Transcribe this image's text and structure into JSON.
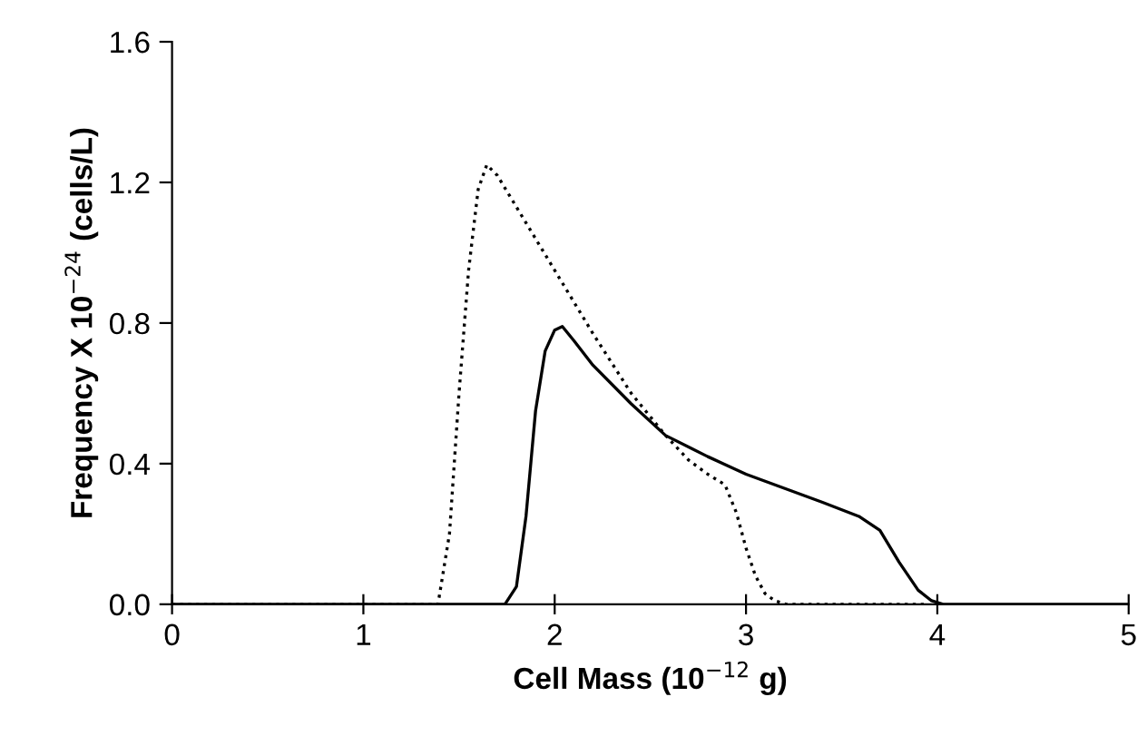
{
  "chart_data": {
    "type": "line",
    "xlabel": "Cell Mass (10$^{−12}$ g)",
    "ylabel": "Frequency X 10$^{−24}$ (cells/L)",
    "xlim": [
      0,
      5
    ],
    "xticks": [
      0,
      1,
      2,
      3,
      4,
      5
    ],
    "ylim": [
      0,
      1.6
    ],
    "yticks": [
      {
        "value": 0,
        "label": "0.0"
      },
      {
        "value": 0.4,
        "label": "0.4"
      },
      {
        "value": 0.8,
        "label": "0.8"
      },
      {
        "value": 1.2,
        "label": "1.2"
      },
      {
        "value": 1.6,
        "label": "1.6"
      }
    ],
    "grid": false,
    "legend": false,
    "marker": "none",
    "series": [
      {
        "color": "#000000",
        "line_style": "dotted",
        "x": [
          0,
          1.39,
          1.45,
          1.5,
          1.55,
          1.6,
          1.645,
          1.7,
          1.8,
          2.0,
          2.2,
          2.4,
          2.58,
          2.7,
          2.8,
          2.89,
          2.95,
          3.0,
          3.05,
          3.1,
          3.15,
          3.21,
          3.5,
          3.94
        ],
        "values": [
          0,
          0,
          0.2,
          0.6,
          0.95,
          1.18,
          1.25,
          1.22,
          1.13,
          0.95,
          0.77,
          0.6,
          0.48,
          0.41,
          0.37,
          0.34,
          0.26,
          0.16,
          0.08,
          0.03,
          0.01,
          0,
          0,
          0
        ]
      },
      {
        "color": "#000000",
        "line_style": "solid",
        "x": [
          0,
          1.74,
          1.8,
          1.85,
          1.9,
          1.95,
          2.0,
          2.04,
          2.1,
          2.2,
          2.4,
          2.58,
          2.8,
          3.0,
          3.2,
          3.4,
          3.59,
          3.7,
          3.8,
          3.9,
          3.97,
          4.03,
          5.0
        ],
        "values": [
          0,
          0,
          0.05,
          0.25,
          0.55,
          0.72,
          0.78,
          0.79,
          0.75,
          0.68,
          0.57,
          0.48,
          0.42,
          0.37,
          0.33,
          0.29,
          0.25,
          0.21,
          0.12,
          0.04,
          0.01,
          0,
          0
        ]
      }
    ]
  }
}
